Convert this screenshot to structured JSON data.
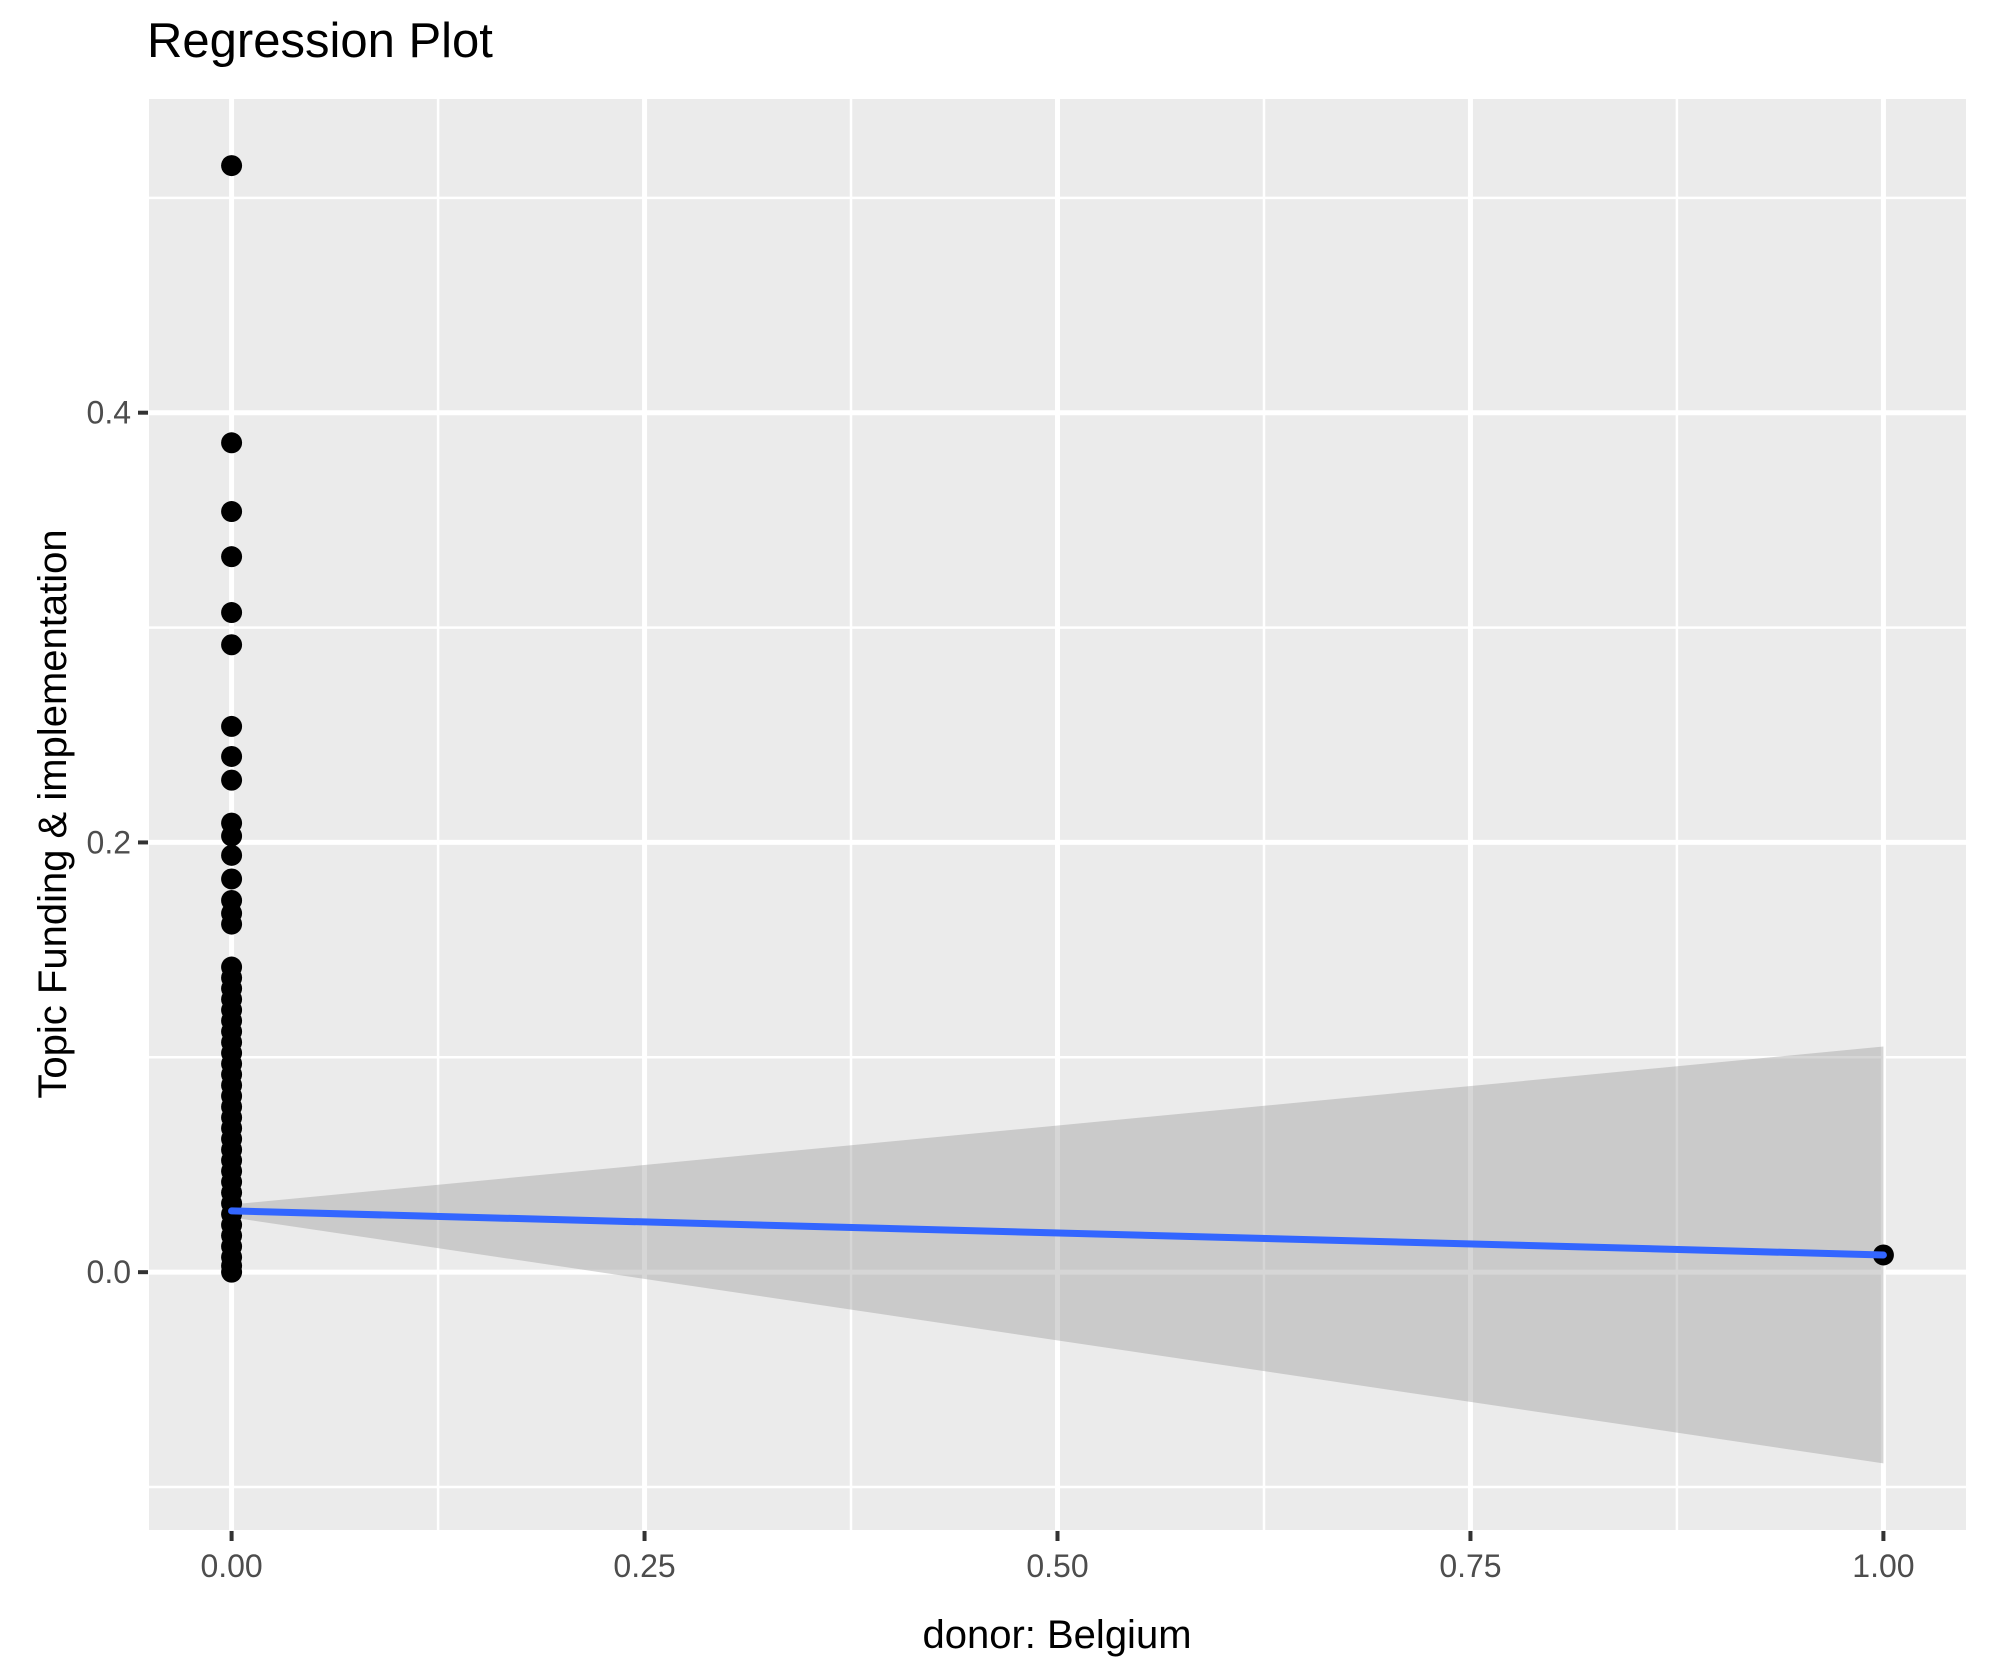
{
  "chart_data": {
    "type": "scatter",
    "title": "Regression Plot",
    "xlabel": "donor: Belgium",
    "ylabel": "Topic Funding & implementation",
    "xlim": [
      -0.05,
      1.05
    ],
    "ylim": [
      -0.12,
      0.546
    ],
    "grid": true,
    "legend_position": "none",
    "x_ticks": [
      {
        "value": 0.0,
        "label": "0.00"
      },
      {
        "value": 0.25,
        "label": "0.25"
      },
      {
        "value": 0.5,
        "label": "0.50"
      },
      {
        "value": 0.75,
        "label": "0.75"
      },
      {
        "value": 1.0,
        "label": "1.00"
      }
    ],
    "y_ticks": [
      {
        "value": 0.0,
        "label": "0.0"
      },
      {
        "value": 0.2,
        "label": "0.2"
      },
      {
        "value": 0.4,
        "label": "0.4"
      }
    ],
    "x_minor_ticks": [
      0.125,
      0.375,
      0.625,
      0.875
    ],
    "y_minor_ticks": [
      -0.1,
      0.1,
      0.3,
      0.5
    ],
    "series": [
      {
        "name": "observations-donor-0",
        "x": 0,
        "y": [
          0.515,
          0.386,
          0.354,
          0.333,
          0.307,
          0.292,
          0.254,
          0.24,
          0.229,
          0.209,
          0.203,
          0.194,
          0.183,
          0.173,
          0.167,
          0.162,
          0.142,
          0.137,
          0.132,
          0.127,
          0.122,
          0.117,
          0.112,
          0.107,
          0.102,
          0.097,
          0.092,
          0.087,
          0.082,
          0.077,
          0.072,
          0.067,
          0.062,
          0.057,
          0.052,
          0.047,
          0.042,
          0.037,
          0.032,
          0.027,
          0.022,
          0.017,
          0.012,
          0.007,
          0.003,
          0.0
        ]
      },
      {
        "name": "observations-donor-1",
        "x": 1,
        "y": [
          0.008
        ]
      }
    ],
    "regression_line": {
      "x": [
        0,
        1
      ],
      "y": [
        0.0285,
        0.008
      ]
    },
    "confidence_band": {
      "x": [
        0,
        1
      ],
      "upper": [
        0.0315,
        0.105
      ],
      "lower": [
        0.0255,
        -0.089
      ]
    },
    "colors": {
      "panel_background": "#EBEBEB",
      "grid": "#FFFFFF",
      "point": "#000000",
      "regression_line": "#3366FF",
      "confidence_band": "#999999",
      "confidence_band_opacity": 0.4,
      "tick_mark": "#333333",
      "tick_text": "#4D4D4D",
      "title_text": "#000000"
    }
  }
}
